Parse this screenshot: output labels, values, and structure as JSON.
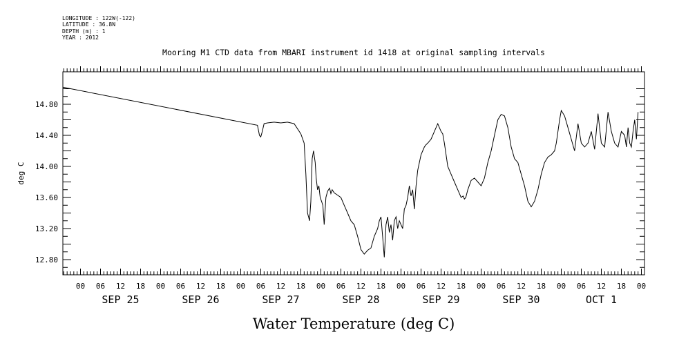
{
  "header": {
    "longitude": "LONGITUDE : 122W(-122)",
    "latitude": "LATITUDE : 36.8N",
    "depth": "DEPTH (m) : 1",
    "year": "YEAR : 2012"
  },
  "chart_data": {
    "type": "line",
    "title": "Mooring M1 CTD data from MBARI instrument id 1418 at original sampling intervals",
    "xlabel": "Water Temperature (deg C)",
    "ylabel": "deg C",
    "ylim": [
      12.6,
      15.0
    ],
    "y_ticks": [
      "12.80",
      "13.20",
      "13.60",
      "14.00",
      "14.40",
      "14.80"
    ],
    "x_hour_ticks": [
      "00",
      "06",
      "12",
      "18",
      "00",
      "06",
      "12",
      "18",
      "00",
      "06",
      "12",
      "18",
      "00",
      "06",
      "12",
      "18",
      "00",
      "06",
      "12",
      "18",
      "00",
      "06",
      "12",
      "18",
      "00",
      "06",
      "12",
      "18",
      "00"
    ],
    "day_labels": [
      "SEP 25",
      "SEP 26",
      "SEP 27",
      "SEP 28",
      "SEP 29",
      "SEP 30",
      "OCT  1"
    ],
    "x_unit": "hours since Sep 25 00:00",
    "xlim": [
      -6,
      168
    ],
    "series": [
      {
        "x": [
          -6,
          53,
          53.6,
          54,
          54.4,
          55,
          56,
          58,
          60,
          62,
          64,
          66,
          67,
          67.5,
          68,
          68.6,
          69,
          69.4,
          69.8,
          70.3,
          70.6,
          71,
          71.4,
          71.8,
          72.2,
          72.6,
          73,
          73.5,
          74,
          74.6,
          75,
          75.4,
          76,
          77,
          78,
          79,
          80,
          81,
          82,
          83,
          84,
          85,
          86,
          87,
          88,
          89,
          89.5,
          90,
          90.5,
          91,
          91.5,
          92,
          92.5,
          93,
          93.5,
          94,
          94.5,
          95,
          95.5,
          96,
          96.5,
          97,
          97.5,
          98,
          98.5,
          99,
          99.5,
          100,
          100.5,
          101,
          101.5,
          102,
          102.5,
          103,
          103.5,
          104,
          105,
          106,
          107,
          107.5,
          108,
          108.5,
          109,
          110,
          111,
          112,
          113,
          114,
          114.6,
          115,
          115.4,
          116,
          117,
          118,
          119,
          120,
          121,
          122,
          123,
          124,
          125,
          126,
          127,
          128,
          129,
          130,
          131,
          132,
          133,
          134,
          135,
          136,
          137,
          138,
          139,
          140,
          141,
          142,
          142.5,
          143,
          143.5,
          144,
          145,
          146,
          147,
          148,
          149,
          150,
          151,
          152,
          153,
          154,
          155,
          156,
          157,
          158,
          159,
          160,
          161,
          162,
          163,
          163.5,
          164,
          164.5,
          165,
          165.5,
          166,
          166.5,
          167
        ],
        "values": [
          15.02,
          14.53,
          14.4,
          14.38,
          14.44,
          14.55,
          14.56,
          14.57,
          14.56,
          14.57,
          14.55,
          14.42,
          14.3,
          13.9,
          13.4,
          13.3,
          13.55,
          14.1,
          14.2,
          14.05,
          13.85,
          13.7,
          13.75,
          13.6,
          13.55,
          13.5,
          13.25,
          13.6,
          13.68,
          13.72,
          13.65,
          13.7,
          13.66,
          13.63,
          13.6,
          13.5,
          13.4,
          13.3,
          13.25,
          13.1,
          12.93,
          12.87,
          12.92,
          12.95,
          13.1,
          13.2,
          13.3,
          13.35,
          13.1,
          12.83,
          13.25,
          13.35,
          13.15,
          13.25,
          13.05,
          13.3,
          13.35,
          13.2,
          13.3,
          13.25,
          13.2,
          13.45,
          13.5,
          13.6,
          13.75,
          13.62,
          13.7,
          13.45,
          13.75,
          13.95,
          14.05,
          14.15,
          14.2,
          14.25,
          14.28,
          14.3,
          14.35,
          14.45,
          14.55,
          14.5,
          14.45,
          14.42,
          14.3,
          14.0,
          13.9,
          13.8,
          13.7,
          13.6,
          13.62,
          13.58,
          13.6,
          13.7,
          13.82,
          13.85,
          13.8,
          13.75,
          13.85,
          14.05,
          14.2,
          14.4,
          14.6,
          14.67,
          14.65,
          14.5,
          14.25,
          14.1,
          14.05,
          13.9,
          13.75,
          13.55,
          13.48,
          13.55,
          13.7,
          13.9,
          14.05,
          14.12,
          14.15,
          14.2,
          14.3,
          14.45,
          14.6,
          14.72,
          14.65,
          14.5,
          14.35,
          14.2,
          14.55,
          14.3,
          14.25,
          14.3,
          14.45,
          14.22,
          14.68,
          14.3,
          14.25,
          14.7,
          14.45,
          14.3,
          14.25,
          14.45,
          14.4,
          14.25,
          14.5,
          14.3,
          14.25,
          14.45,
          14.6,
          14.35,
          14.7
        ]
      }
    ]
  }
}
